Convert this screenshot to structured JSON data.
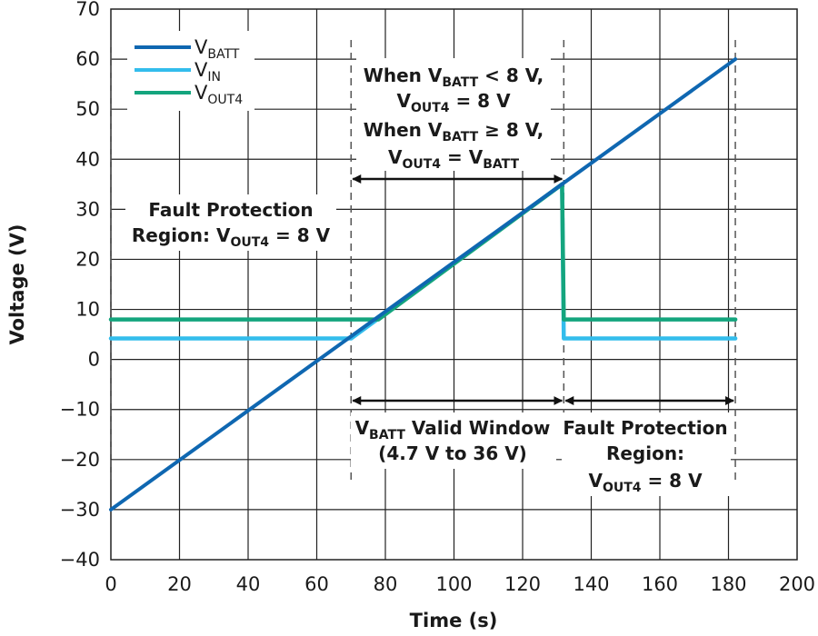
{
  "chart_data": {
    "type": "line",
    "xlabel": "Time (s)",
    "ylabel": "Voltage (V)",
    "xlim": [
      0,
      200
    ],
    "ylim": [
      -40,
      70
    ],
    "x_ticks": [
      0,
      20,
      40,
      60,
      80,
      100,
      120,
      140,
      160,
      180,
      200
    ],
    "y_ticks": [
      70,
      60,
      50,
      40,
      30,
      20,
      10,
      0,
      -10,
      -20,
      -30,
      -40
    ],
    "grid": true,
    "legend_position": "top-left",
    "series": [
      {
        "name": "V_BATT",
        "main": "V",
        "sub": "BATT",
        "color": "#0f67b1",
        "points": [
          [
            0,
            -30
          ],
          [
            182,
            60
          ]
        ]
      },
      {
        "name": "V_IN",
        "main": "V",
        "sub": "IN",
        "color": "#33bdec",
        "points": [
          [
            0,
            4.2
          ],
          [
            70,
            4.2
          ],
          [
            131.5,
            35
          ],
          [
            132,
            4.2
          ],
          [
            182,
            4.2
          ]
        ]
      },
      {
        "name": "V_OUT4",
        "main": "V",
        "sub": "OUT4",
        "color": "#14a57e",
        "points": [
          [
            0,
            8
          ],
          [
            78,
            8
          ],
          [
            131.5,
            35
          ],
          [
            132,
            8
          ],
          [
            182,
            8
          ]
        ]
      }
    ],
    "boundaries": [
      0,
      70,
      132,
      182
    ],
    "annotations": {
      "top_window": {
        "l1_a": "When V",
        "l1_sub": "BATT",
        "l1_b": " < 8 V,",
        "l2_a": "V",
        "l2_sub": "OUT4",
        "l2_b": " = 8 V",
        "l3_a": "When V",
        "l3_sub": "BATT",
        "l3_b": " ≥ 8 V,",
        "l4_a": "V",
        "l4_sub": "OUT4",
        "l4_b": " = V",
        "l4_sub2": "BATT"
      },
      "left_fault": {
        "l1": "Fault Protection",
        "l2_a": "Region: V",
        "l2_sub": "OUT4",
        "l2_b": " = 8 V"
      },
      "valid_window": {
        "l1_a": "V",
        "l1_sub": "BATT",
        "l1_b": " Valid Window",
        "l2": "(4.7 V to 36 V)"
      },
      "right_fault": {
        "l1": "Fault Protection",
        "l2": "Region:",
        "l3_a": "V",
        "l3_sub": "OUT4",
        "l3_b": " = 8 V"
      }
    }
  }
}
